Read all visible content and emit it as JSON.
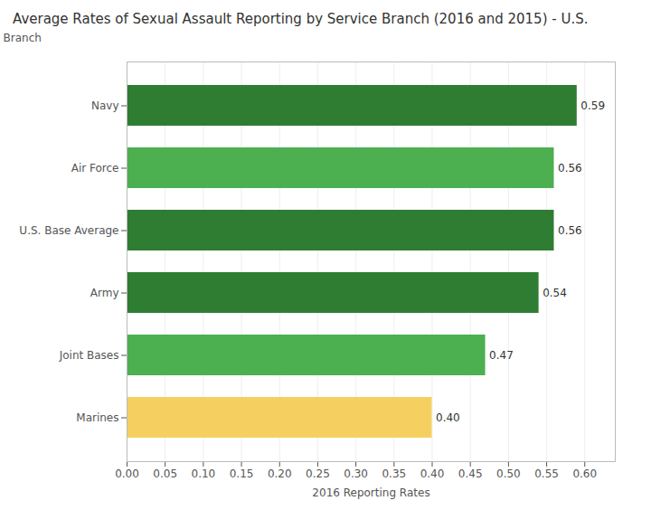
{
  "chart_data": {
    "type": "bar",
    "orientation": "horizontal",
    "title": "Average Rates of Sexual Assault Reporting by Service Branch (2016 and 2015) - U.S.",
    "categories": [
      "Marines",
      "Joint Bases",
      "Army",
      "U.S. Base Average",
      "Air Force",
      "Navy"
    ],
    "values": [
      0.4,
      0.47,
      0.54,
      0.56,
      0.56,
      0.59
    ],
    "value_labels": [
      "0.40",
      "0.47",
      "0.54",
      "0.56",
      "0.56",
      "0.59"
    ],
    "data_labels": true,
    "colors": [
      "#F5D060",
      "#4CAF50",
      "#2E7D32",
      "#2E7D32",
      "#4CAF50",
      "#2E7D32"
    ],
    "xlabel": "2016 Reporting Rates",
    "ylabel": "Branch",
    "xlim": [
      0.0,
      0.64
    ],
    "xticks": [
      {
        "value": 0.0,
        "label": "0.00"
      },
      {
        "value": 0.05,
        "label": "0.05"
      },
      {
        "value": 0.1,
        "label": "0.10"
      },
      {
        "value": 0.15,
        "label": "0.15"
      },
      {
        "value": 0.2,
        "label": "0.20"
      },
      {
        "value": 0.25,
        "label": "0.25"
      },
      {
        "value": 0.3,
        "label": "0.30"
      },
      {
        "value": 0.35,
        "label": "0.35"
      },
      {
        "value": 0.4,
        "label": "0.40"
      },
      {
        "value": 0.45,
        "label": "0.45"
      },
      {
        "value": 0.5,
        "label": "0.50"
      },
      {
        "value": 0.55,
        "label": "0.55"
      },
      {
        "value": 0.6,
        "label": "0.60"
      }
    ],
    "grid": true
  }
}
